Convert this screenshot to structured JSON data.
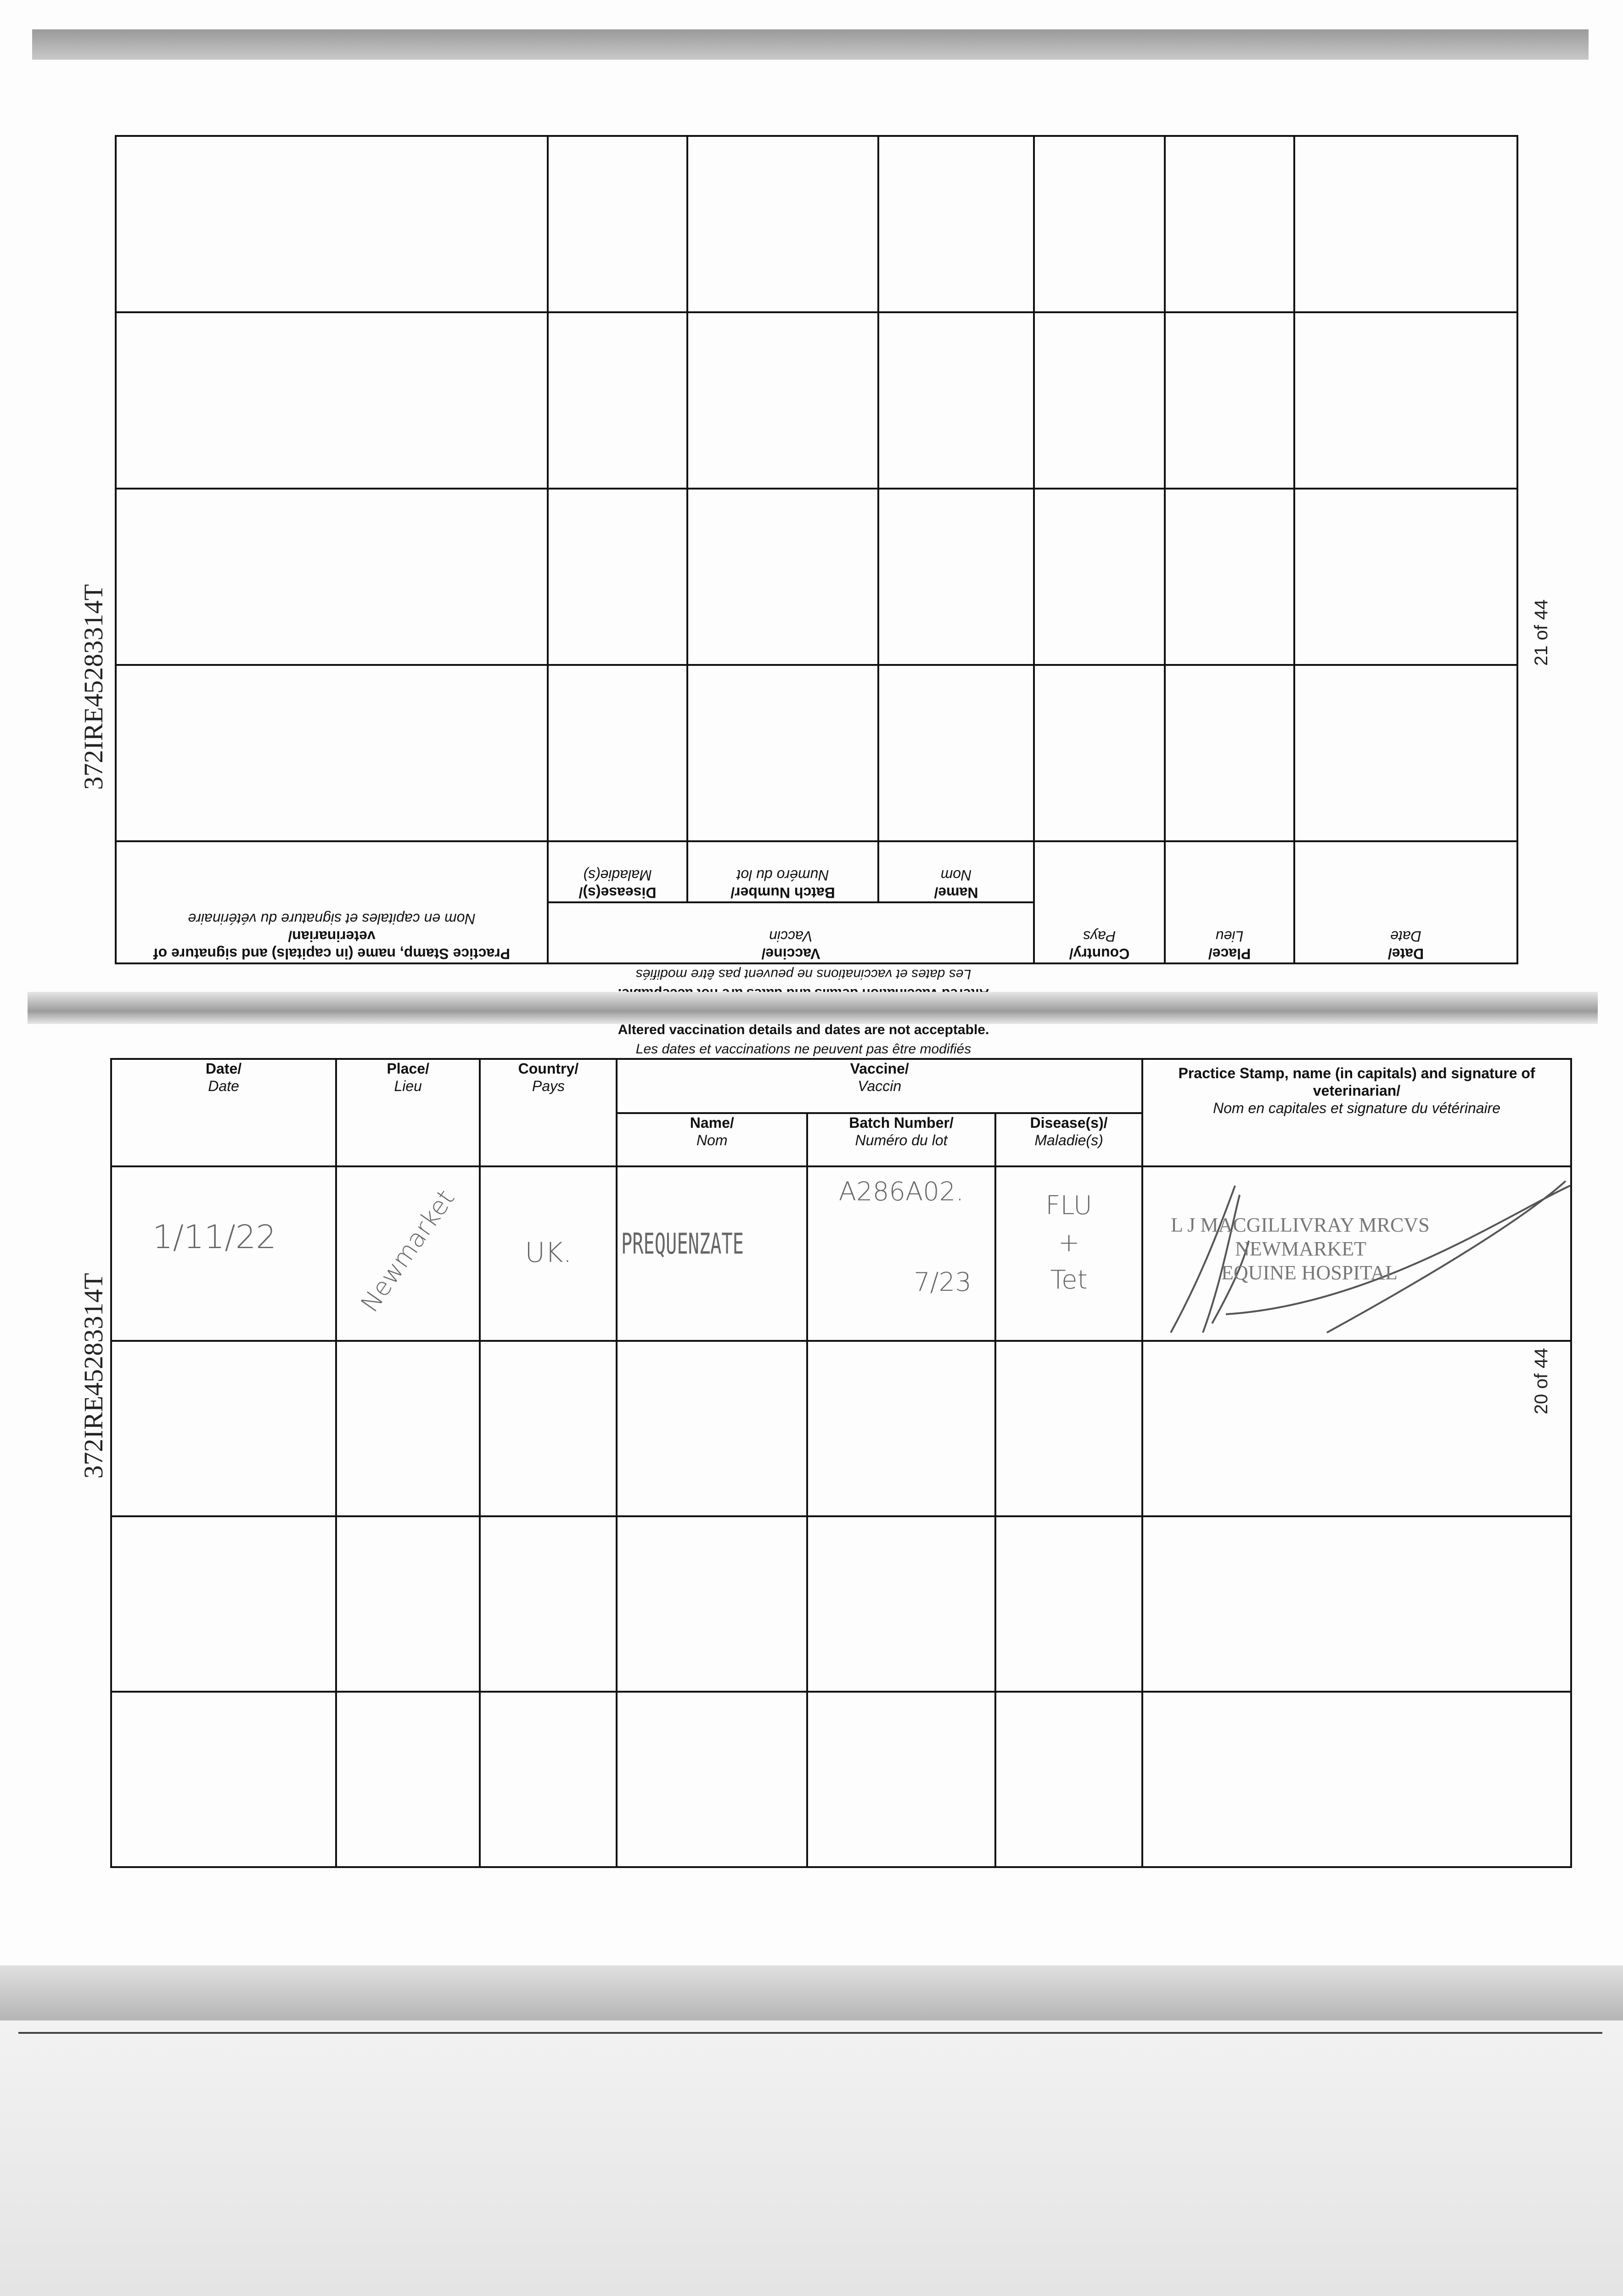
{
  "document_ref": "372IRE45283314T",
  "upper_page": {
    "page_number": "21 of 44",
    "notice_en": "Altered vaccination details and dates are not acceptable.",
    "notice_fr": "Les dates et vaccinations ne peuvent pas être modifiés"
  },
  "lower_page": {
    "page_number": "20 of 44",
    "notice_en": "Altered vaccination details and dates are not acceptable.",
    "notice_fr": "Les dates et vaccinations ne peuvent pas être modifiés"
  },
  "headers": {
    "date_en": "Date/",
    "date_fr": "Date",
    "place_en": "Place/",
    "place_fr": "Lieu",
    "country_en": "Country/",
    "country_fr": "Pays",
    "vaccine_en": "Vaccine/",
    "vaccine_fr": "Vaccin",
    "name_en": "Name/",
    "name_fr": "Nom",
    "batch_en": "Batch Number/",
    "batch_fr": "Numéro du lot",
    "disease_en": "Disease(s)/",
    "disease_fr": "Maladie(s)",
    "stamp_en": "Practice Stamp, name (in capitals) and signature of veterinarian/",
    "stamp_fr": "Nom en capitales et signature du vétérinaire"
  },
  "entry": {
    "date": "1/11/22",
    "place": "Newmarket",
    "country": "UK.",
    "vaccine_name": "PREQUENZATE",
    "batch_number": "A286A02.",
    "batch_expiry": "7/23",
    "disease_1": "FLU",
    "disease_plus": "+",
    "disease_2": "Tet",
    "stamp_line_1": "L J MACGILLIVRAY MRCVS",
    "stamp_line_2": "NEWMARKET",
    "stamp_line_3": "EQUINE HOSPITAL"
  }
}
